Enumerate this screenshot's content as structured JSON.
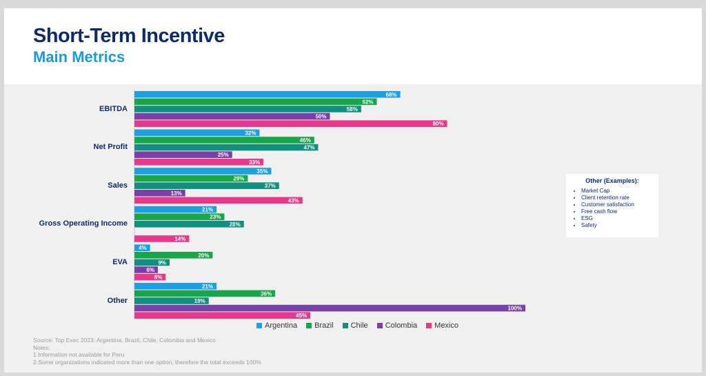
{
  "header": {
    "title": "Short-Term Incentive",
    "subtitle": "Main Metrics"
  },
  "colors": {
    "title": "#0d2b6b",
    "subtitle": "#1a9ad9",
    "Argentina": "#1ba1e2",
    "Brazil": "#19a64a",
    "Chile": "#138f7f",
    "Colombia": "#7b3fa8",
    "Mexico": "#e8388a"
  },
  "chart_data": {
    "type": "bar",
    "orientation": "horizontal",
    "categories": [
      "EBITDA",
      "Net Profit",
      "Sales",
      "Gross Operating Income",
      "EVA",
      "Other"
    ],
    "series": [
      {
        "name": "Argentina",
        "values": [
          68,
          32,
          35,
          21,
          4,
          21
        ]
      },
      {
        "name": "Brazil",
        "values": [
          62,
          46,
          29,
          23,
          20,
          36
        ]
      },
      {
        "name": "Chile",
        "values": [
          58,
          47,
          37,
          28,
          9,
          19
        ]
      },
      {
        "name": "Colombia",
        "values": [
          50,
          25,
          13,
          null,
          6,
          100
        ]
      },
      {
        "name": "Mexico",
        "values": [
          80,
          33,
          43,
          14,
          8,
          45
        ]
      }
    ],
    "value_suffix": "%",
    "xlim": [
      0,
      100
    ],
    "legend_position": "bottom"
  },
  "other_box": {
    "title": "Other (Examples):",
    "items": [
      "Market Cap",
      "Client retention rate",
      "Customer satisfaction",
      "Free cash flow",
      "ESG",
      "Safety"
    ]
  },
  "notes": {
    "source": "Source: Top Exec 2023: Argentina, Brazil, Chile, Colombia and Mexico",
    "label": "Notes:",
    "items": [
      "1.Information not available for Peru",
      "2.Some organizations indicated more than one option, therefore the total exceeds 100%"
    ]
  }
}
